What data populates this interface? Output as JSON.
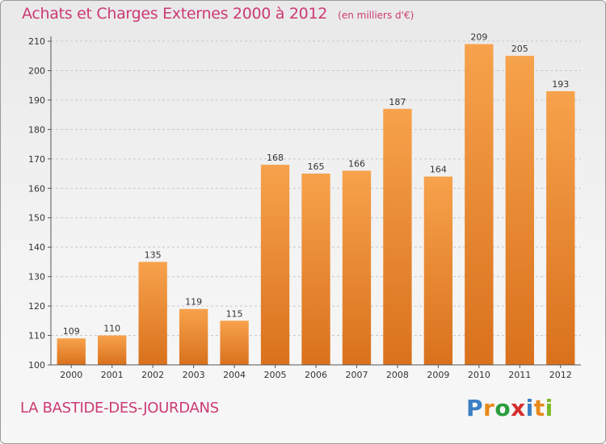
{
  "title": "Achats et Charges Externes 2000 à 2012",
  "unit_note": "(en milliers d'€)",
  "location": "LA BASTIDE-DES-JOURDANS",
  "brand": {
    "letters": [
      "P",
      "r",
      "o",
      "x",
      "i",
      "t",
      "i"
    ],
    "colors": [
      "#3b7fc4",
      "#e88a1a",
      "#2a9d3c",
      "#d62f2f",
      "#3b7fc4",
      "#e88a1a",
      "#7ab929"
    ]
  },
  "colors": {
    "bar_top": "#f7a24c",
    "bar_bottom": "#d9711c",
    "axis": "#555555",
    "grid": "#c8c8c8",
    "title": "#cc3a73"
  },
  "chart_data": {
    "type": "bar",
    "categories": [
      "2000",
      "2001",
      "2002",
      "2003",
      "2004",
      "2005",
      "2006",
      "2007",
      "2008",
      "2009",
      "2010",
      "2011",
      "2012"
    ],
    "values": [
      109,
      110,
      135,
      119,
      115,
      168,
      165,
      166,
      187,
      164,
      209,
      205,
      193
    ],
    "ylim": [
      100,
      210
    ],
    "yticks": [
      100,
      110,
      120,
      130,
      140,
      150,
      160,
      170,
      180,
      190,
      200,
      210
    ],
    "grid": true,
    "data_labels": true
  }
}
